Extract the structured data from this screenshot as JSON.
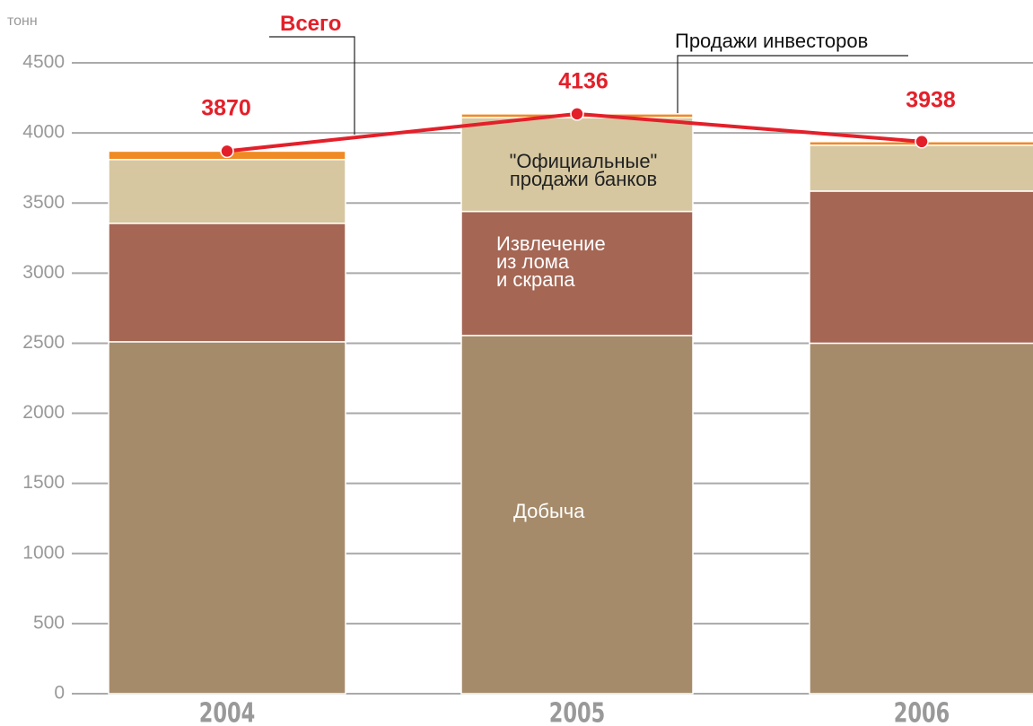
{
  "chart_data": {
    "type": "stacked_bar_line",
    "y_label": "тонн",
    "categories": [
      "2004",
      "2005",
      "2006"
    ],
    "ylim": [
      0,
      4500
    ],
    "yticks": [
      0,
      500,
      1000,
      1500,
      2000,
      2500,
      3000,
      3500,
      4000,
      4500
    ],
    "grid": true,
    "series": [
      {
        "name": "Добыча",
        "color": "#a68b6a",
        "values": [
          2510,
          2555,
          2500
        ]
      },
      {
        "name": "Извлечение\nиз лома\nи скрапа",
        "color": "#a56654",
        "values": [
          845,
          885,
          1085
        ]
      },
      {
        "name": "\"Официальные\"\nпродажи банков",
        "color": "#d6c7a0",
        "values": [
          455,
          670,
          327
        ]
      },
      {
        "name": "Продажи инвесторов",
        "color": "#f08a24",
        "values": [
          60,
          26,
          26
        ]
      }
    ],
    "total": {
      "name": "Всего",
      "color": "#e3202a",
      "values": [
        3870,
        4136,
        3938
      ]
    }
  }
}
